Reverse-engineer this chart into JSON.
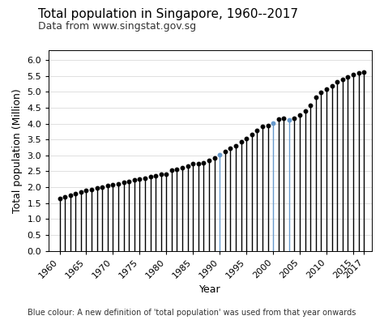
{
  "title": "Total population in Singapore, 1960--2017",
  "subtitle": "Data from www.singstat.gov.sg",
  "xlabel": "Year",
  "ylabel": "Total population (Million)",
  "footnote": "Blue colour: A new definition of 'total population' was used from that year onwards",
  "ylim": [
    0,
    6.3
  ],
  "yticks": [
    0.0,
    0.5,
    1.0,
    1.5,
    2.0,
    2.5,
    3.0,
    3.5,
    4.0,
    4.5,
    5.0,
    5.5,
    6.0
  ],
  "years": [
    1960,
    1961,
    1962,
    1963,
    1964,
    1965,
    1966,
    1967,
    1968,
    1969,
    1970,
    1971,
    1972,
    1973,
    1974,
    1975,
    1976,
    1977,
    1978,
    1979,
    1980,
    1981,
    1982,
    1983,
    1984,
    1985,
    1986,
    1987,
    1988,
    1989,
    1990,
    1991,
    1992,
    1993,
    1994,
    1995,
    1996,
    1997,
    1998,
    1999,
    2000,
    2001,
    2002,
    2003,
    2004,
    2005,
    2006,
    2007,
    2008,
    2009,
    2010,
    2011,
    2012,
    2013,
    2014,
    2015,
    2016,
    2017
  ],
  "population": [
    1.646,
    1.702,
    1.754,
    1.811,
    1.854,
    1.897,
    1.934,
    1.972,
    2.013,
    2.042,
    2.075,
    2.113,
    2.152,
    2.193,
    2.229,
    2.263,
    2.294,
    2.334,
    2.369,
    2.414,
    2.414,
    2.532,
    2.572,
    2.617,
    2.659,
    2.736,
    2.733,
    2.775,
    2.847,
    2.93,
    3.016,
    3.135,
    3.23,
    3.313,
    3.419,
    3.524,
    3.67,
    3.796,
    3.927,
    3.952,
    4.028,
    4.138,
    4.176,
    4.115,
    4.167,
    4.266,
    4.401,
    4.589,
    4.839,
    4.988,
    5.077,
    5.184,
    5.312,
    5.4,
    5.47,
    5.535,
    5.607,
    5.612
  ],
  "blue_years": [
    1990,
    2000,
    2003
  ],
  "bar_color_default": "black",
  "bar_color_blue": "#6699cc",
  "dot_color_default": "black",
  "dot_color_blue": "#6699cc",
  "background_color": "white",
  "plot_bg_color": "white",
  "xtick_years": [
    1960,
    1965,
    1970,
    1975,
    1980,
    1985,
    1990,
    1995,
    2000,
    2005,
    2010,
    2015,
    2017
  ],
  "title_fontsize": 11,
  "subtitle_fontsize": 9,
  "ylabel_fontsize": 9,
  "xlabel_fontsize": 9,
  "tick_fontsize": 8,
  "footnote_fontsize": 7
}
